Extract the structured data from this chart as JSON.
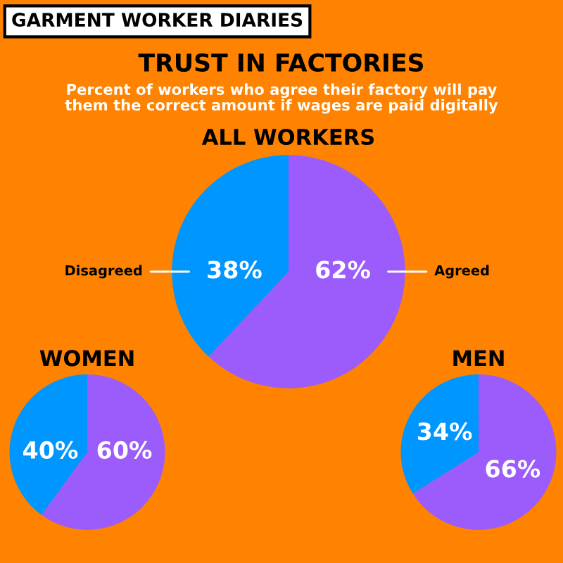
{
  "chart_data": [
    {
      "type": "other",
      "title": "TRUST IN FACTORIES",
      "subtitle": "Percent of workers who agree their factory will pay\nthem the correct amount if wages are paid digitally",
      "annotations": [
        "GARMENT WORKER DIARIES"
      ]
    },
    {
      "type": "pie",
      "title": "ALL WORKERS",
      "categories": [
        "Agreed",
        "Disagreed"
      ],
      "values": [
        62,
        38
      ],
      "value_labels": [
        "62%",
        "38%"
      ],
      "colors": [
        "#9b5cfb",
        "#0096ff"
      ]
    },
    {
      "type": "pie",
      "title": "WOMEN",
      "categories": [
        null,
        null
      ],
      "values": [
        60,
        40
      ],
      "value_labels": [
        "60%",
        "40%"
      ],
      "colors": [
        "#9b5cfb",
        "#0096ff"
      ]
    },
    {
      "type": "pie",
      "title": "MEN",
      "categories": [
        null,
        null
      ],
      "values": [
        66,
        34
      ],
      "value_labels": [
        "66%",
        "34%"
      ],
      "colors": [
        "#9b5cfb",
        "#0096ff"
      ]
    }
  ]
}
